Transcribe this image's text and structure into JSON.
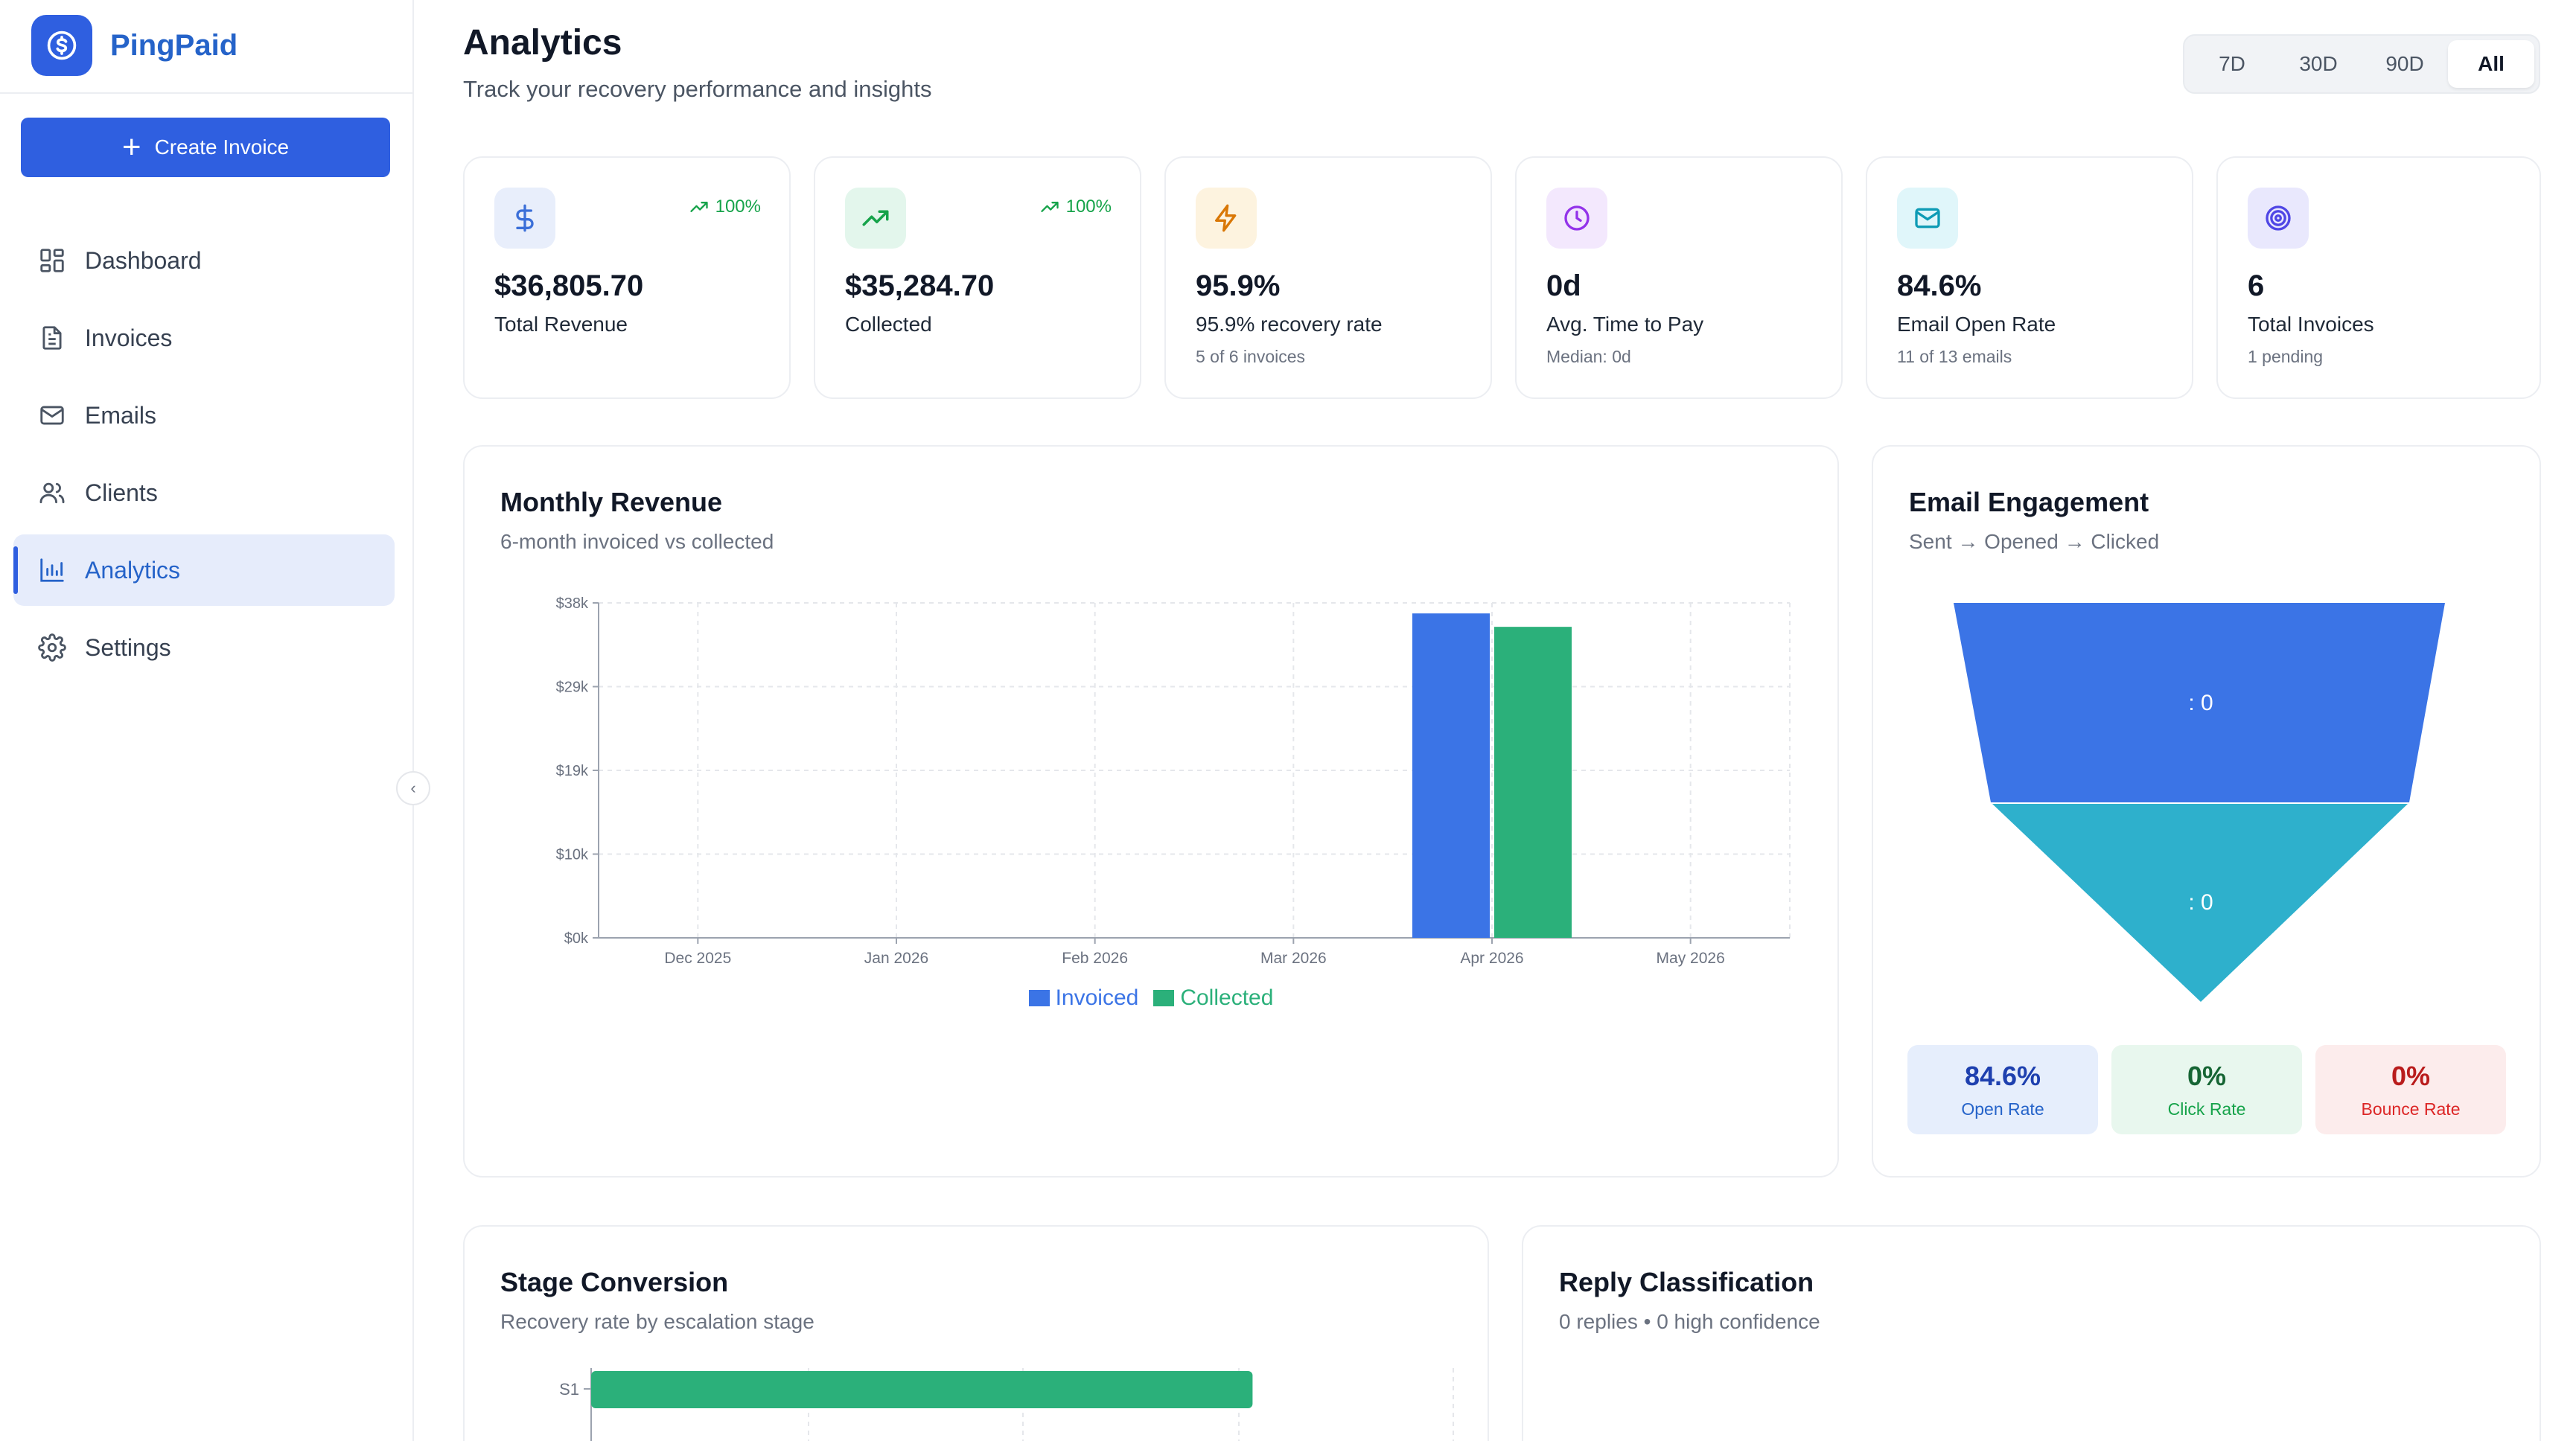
{
  "app": {
    "name": "PingPaid"
  },
  "sidebar": {
    "create_label": "Create Invoice",
    "items": [
      {
        "label": "Dashboard",
        "icon": "dashboard-icon"
      },
      {
        "label": "Invoices",
        "icon": "file-icon"
      },
      {
        "label": "Emails",
        "icon": "mail-icon"
      },
      {
        "label": "Clients",
        "icon": "users-icon"
      },
      {
        "label": "Analytics",
        "icon": "bar-chart-icon",
        "active": true
      },
      {
        "label": "Settings",
        "icon": "gear-icon"
      }
    ]
  },
  "header": {
    "title": "Analytics",
    "subtitle": "Track your recovery performance and insights",
    "ranges": [
      "7D",
      "30D",
      "90D",
      "All"
    ],
    "active_range": "All"
  },
  "stats": [
    {
      "value": "$36,805.70",
      "label": "Total Revenue",
      "trend": "100%",
      "sub": "",
      "icon": "dollar-icon",
      "color": "#3b6fd8"
    },
    {
      "value": "$35,284.70",
      "label": "Collected",
      "trend": "100%",
      "sub": "",
      "icon": "trending-up-icon",
      "color": "#16a34a"
    },
    {
      "value": "95.9%",
      "label": "95.9% recovery rate",
      "trend": "",
      "sub": "5 of 6 invoices",
      "icon": "bolt-icon",
      "color": "#d97706"
    },
    {
      "value": "0d",
      "label": "Avg. Time to Pay",
      "trend": "",
      "sub": "Median: 0d",
      "icon": "clock-icon",
      "color": "#9333ea"
    },
    {
      "value": "84.6%",
      "label": "Email Open Rate",
      "trend": "",
      "sub": "11 of 13 emails",
      "icon": "mail-icon",
      "color": "#0e9bb5"
    },
    {
      "value": "6",
      "label": "Total Invoices",
      "trend": "",
      "sub": "1 pending",
      "icon": "target-icon",
      "color": "#4f46e5"
    }
  ],
  "monthly_revenue": {
    "title": "Monthly Revenue",
    "subtitle": "6-month invoiced vs collected"
  },
  "email_engagement": {
    "title": "Email Engagement",
    "subtitle": "Sent → Opened → Clicked",
    "funnel_labels": [
      ": 0",
      ": 0"
    ],
    "rates": [
      {
        "value": "84.6%",
        "label": "Open Rate"
      },
      {
        "value": "0%",
        "label": "Click Rate"
      },
      {
        "value": "0%",
        "label": "Bounce Rate"
      }
    ]
  },
  "stage_conversion": {
    "title": "Stage Conversion",
    "subtitle": "Recovery rate by escalation stage",
    "stage_label": "S1"
  },
  "reply_classification": {
    "title": "Reply Classification",
    "subtitle": "0 replies • 0 high confidence"
  },
  "chart_data": [
    {
      "type": "bar",
      "categories": [
        "Dec 2025",
        "Jan 2026",
        "Feb 2026",
        "Mar 2026",
        "Apr 2026",
        "May 2026"
      ],
      "series": [
        {
          "name": "Invoiced",
          "values": [
            0,
            0,
            0,
            0,
            36805.7,
            0
          ],
          "color": "#3b74e6"
        },
        {
          "name": "Collected",
          "values": [
            0,
            0,
            0,
            0,
            35284.7,
            0
          ],
          "color": "#2bb07a"
        }
      ],
      "yticks": [
        "$0k",
        "$10k",
        "$19k",
        "$29k",
        "$38k"
      ],
      "ylim": [
        0,
        38000
      ],
      "grid": true,
      "legend": "bottom"
    },
    {
      "type": "bar",
      "orientation": "horizontal",
      "categories": [
        "S1"
      ],
      "values": [
        95.9
      ],
      "color": "#2bb07a"
    }
  ]
}
